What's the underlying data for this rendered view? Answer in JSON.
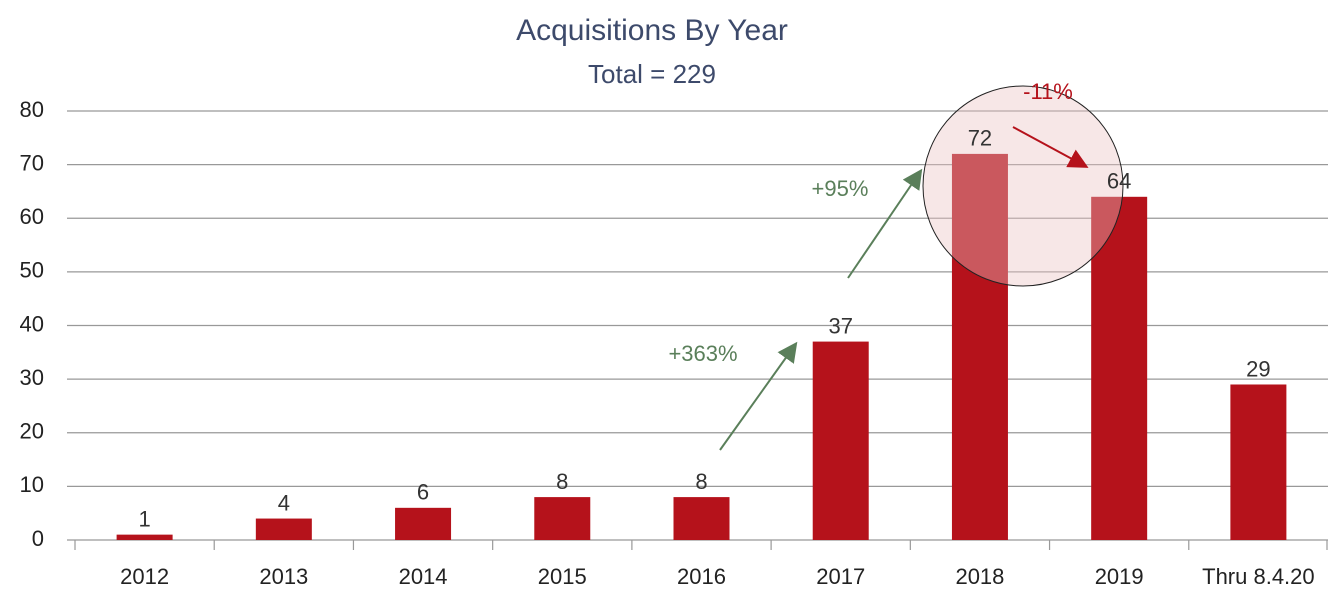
{
  "chart_data": {
    "type": "bar",
    "title": "Acquisitions By Year",
    "subtitle": "Total = 229",
    "categories": [
      "2012",
      "2013",
      "2014",
      "2015",
      "2016",
      "2017",
      "2018",
      "2019",
      "Thru 8.4.20"
    ],
    "values": [
      1,
      4,
      6,
      8,
      8,
      37,
      72,
      64,
      29
    ],
    "color": "#b5121b",
    "ylim": [
      0,
      80
    ],
    "yticks": [
      0,
      10,
      20,
      30,
      40,
      50,
      60,
      70,
      80
    ],
    "grid": true,
    "annotations": [
      {
        "text": "+363%",
        "color": "#5a7f5a"
      },
      {
        "text": "+95%",
        "color": "#5a7f5a"
      },
      {
        "text": "-11%",
        "color": "#b5121b"
      }
    ]
  }
}
